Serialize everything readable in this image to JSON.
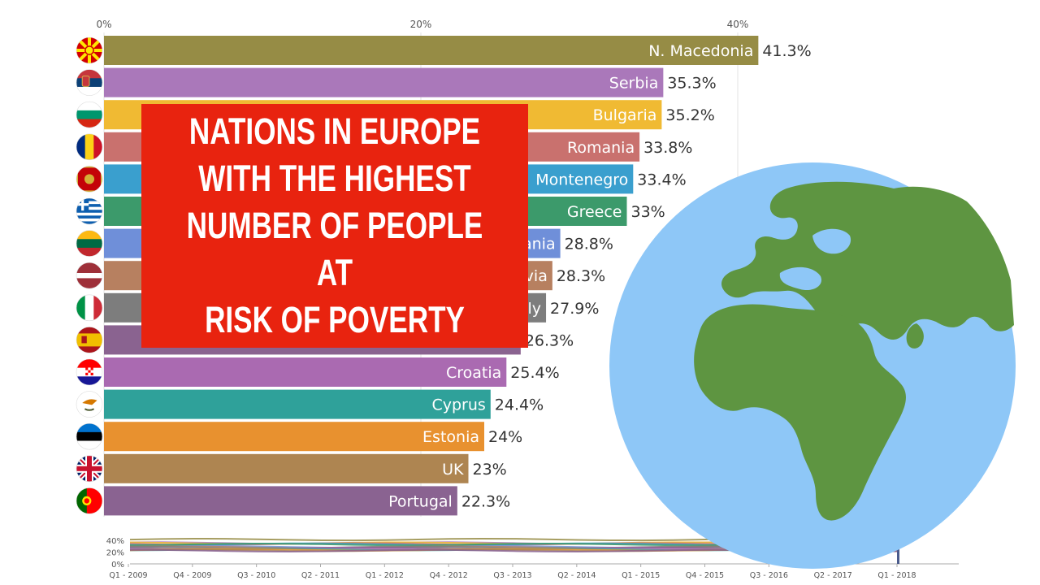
{
  "title": "NATIONS IN EUROPE\nWITH THE HIGHEST\nNUMBER OF PEOPLE AT\nRISK OF POVERTY",
  "colors": {
    "banner": "#e8230f",
    "globe_ocean": "#8ec7f7",
    "globe_land": "#5e9541"
  },
  "chart_data": [
    {
      "type": "bar",
      "orientation": "horizontal",
      "x_ticks": [
        "0%",
        "20%",
        "40%"
      ],
      "xlim": [
        0,
        41.3
      ],
      "grid": true,
      "categories": [
        "N. Macedonia",
        "Serbia",
        "Bulgaria",
        "Romania",
        "Montenegro",
        "Greece",
        "Lithuania",
        "Latvia",
        "Italy",
        "Spain",
        "Croatia",
        "Cyprus",
        "Estonia",
        "UK",
        "Portugal"
      ],
      "visible_labels": [
        "N. Macedonia",
        "Serbia",
        "Bulgaria",
        "Romania",
        "Montenegro",
        "Greece",
        "ania",
        "via",
        "ly",
        "",
        "Croatia",
        "Cyprus",
        "Estonia",
        "UK",
        "Portugal"
      ],
      "value_labels": [
        "41.3%",
        "35.3%",
        "35.2%",
        "33.8%",
        "33.4%",
        "33%",
        "28.8%",
        "28.3%",
        "27.9%",
        "26.3%",
        "25.4%",
        "24.4%",
        "24%",
        "23%",
        "22.3%"
      ],
      "values": [
        41.3,
        35.3,
        35.2,
        33.8,
        33.4,
        33.0,
        28.8,
        28.3,
        27.9,
        26.3,
        25.4,
        24.4,
        24.0,
        23.0,
        22.3
      ],
      "colors": [
        "#968c45",
        "#aa78ba",
        "#f0ba33",
        "#c9716e",
        "#3a9fce",
        "#3c9a6b",
        "#6f8fd9",
        "#b78060",
        "#7d7d7d",
        "#8a6390",
        "#aa6ab1",
        "#2fa19a",
        "#e8912f",
        "#ae8551",
        "#8a6391"
      ],
      "flags": [
        "flag-north-macedonia",
        "flag-serbia",
        "flag-bulgaria",
        "flag-romania",
        "flag-montenegro",
        "flag-greece",
        "flag-lithuania",
        "flag-latvia",
        "flag-italy",
        "flag-spain",
        "flag-croatia",
        "flag-cyprus",
        "flag-estonia",
        "flag-uk",
        "flag-portugal"
      ]
    },
    {
      "type": "area",
      "y_ticks": [
        "40%",
        "20%",
        "0%"
      ],
      "ylim": [
        0,
        40
      ],
      "x_ticks": [
        "Q1 - 2009",
        "Q4 - 2009",
        "Q3 - 2010",
        "Q2 - 2011",
        "Q1 - 2012",
        "Q4 - 2012",
        "Q3 - 2013",
        "Q2 - 2014",
        "Q1 - 2015",
        "Q4 - 2015",
        "Q3 - 2016",
        "Q2 - 2017",
        "Q1 - 2018"
      ]
    }
  ]
}
